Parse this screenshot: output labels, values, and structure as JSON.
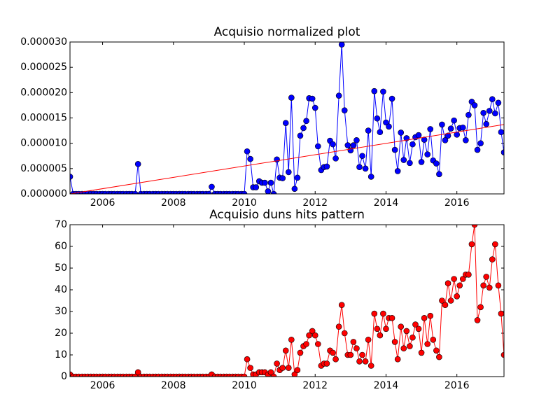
{
  "chart_data": [
    {
      "type": "line",
      "title": "Acquisio normalized plot",
      "xlim": [
        2005.08,
        2017.33
      ],
      "xticks": [
        2006,
        2008,
        2010,
        2012,
        2014,
        2016
      ],
      "ylim": [
        0,
        3e-05
      ],
      "yticks": [
        {
          "value": 0,
          "label": "0.000000"
        },
        {
          "value": 5e-06,
          "label": "0.000005"
        },
        {
          "value": 1e-05,
          "label": "0.000010"
        },
        {
          "value": 1.5e-05,
          "label": "0.000015"
        },
        {
          "value": 2e-05,
          "label": "0.000020"
        },
        {
          "value": 2.5e-05,
          "label": "0.000025"
        },
        {
          "value": 3e-05,
          "label": "0.000030"
        }
      ],
      "series": [
        {
          "color": "#0000ff",
          "markers": true,
          "x": [
            2005.08,
            2005.17,
            2005.25,
            2005.33,
            2005.42,
            2005.5,
            2005.58,
            2005.67,
            2005.75,
            2005.83,
            2005.92,
            2006,
            2006.08,
            2006.17,
            2006.25,
            2006.33,
            2006.42,
            2006.5,
            2006.58,
            2006.67,
            2006.75,
            2006.83,
            2006.92,
            2007,
            2007.08,
            2007.17,
            2007.25,
            2007.33,
            2007.42,
            2007.5,
            2007.58,
            2007.67,
            2007.75,
            2007.83,
            2007.92,
            2008,
            2008.08,
            2008.17,
            2008.25,
            2008.33,
            2008.42,
            2008.5,
            2008.58,
            2008.67,
            2008.75,
            2008.83,
            2008.92,
            2009,
            2009.08,
            2009.17,
            2009.25,
            2009.33,
            2009.42,
            2009.5,
            2009.58,
            2009.67,
            2009.75,
            2009.83,
            2009.92,
            2010,
            2010.08,
            2010.17,
            2010.25,
            2010.33,
            2010.42,
            2010.5,
            2010.58,
            2010.67,
            2010.75,
            2010.83,
            2010.92,
            2011,
            2011.08,
            2011.17,
            2011.25,
            2011.33,
            2011.42,
            2011.5,
            2011.58,
            2011.67,
            2011.75,
            2011.83,
            2011.92,
            2012,
            2012.08,
            2012.17,
            2012.25,
            2012.33,
            2012.42,
            2012.5,
            2012.58,
            2012.67,
            2012.75,
            2012.83,
            2012.92,
            2013,
            2013.08,
            2013.17,
            2013.25,
            2013.33,
            2013.42,
            2013.5,
            2013.58,
            2013.67,
            2013.75,
            2013.83,
            2013.92,
            2014,
            2014.08,
            2014.17,
            2014.25,
            2014.33,
            2014.42,
            2014.5,
            2014.58,
            2014.67,
            2014.75,
            2014.83,
            2014.92,
            2015,
            2015.08,
            2015.17,
            2015.25,
            2015.33,
            2015.42,
            2015.5,
            2015.58,
            2015.67,
            2015.75,
            2015.83,
            2015.92,
            2016,
            2016.08,
            2016.17,
            2016.25,
            2016.33,
            2016.42,
            2016.5,
            2016.58,
            2016.67,
            2016.75,
            2016.83,
            2016.92,
            2017,
            2017.08,
            2017.17,
            2017.25,
            2017.33
          ],
          "values": [
            3.4e-06,
            0,
            0,
            0,
            0,
            0,
            0,
            0,
            0,
            0,
            0,
            0,
            0,
            0,
            0,
            0,
            0,
            0,
            0,
            0,
            0,
            0,
            0,
            5.9e-06,
            0,
            0,
            0,
            0,
            0,
            0,
            0,
            0,
            0,
            0,
            0,
            0,
            0,
            0,
            0,
            0,
            0,
            0,
            0,
            0,
            0,
            0,
            0,
            0,
            1.4e-06,
            0,
            0,
            0,
            0,
            0,
            0,
            0,
            0,
            0,
            0,
            0,
            8.4e-06,
            6.9e-06,
            1.3e-06,
            1.3e-06,
            2.5e-06,
            2.2e-06,
            2.2e-06,
            5e-07,
            2.2e-06,
            0,
            6.8e-06,
            3.2e-06,
            3.1e-06,
            1.4e-05,
            4.3e-06,
            1.9e-05,
            1e-06,
            3.2e-06,
            1.15e-05,
            1.3e-05,
            1.44e-05,
            1.89e-05,
            1.88e-05,
            1.7e-05,
            9.4e-06,
            4.7e-06,
            5.3e-06,
            5.4e-06,
            1.05e-05,
            9.8e-06,
            7e-06,
            1.94e-05,
            2.95e-05,
            1.65e-05,
            9.6e-06,
            8.6e-06,
            9.6e-06,
            1.06e-05,
            5.3e-06,
            7.5e-06,
            5e-06,
            1.25e-05,
            3.4e-06,
            2.03e-05,
            1.49e-05,
            1.22e-05,
            2.02e-05,
            1.41e-05,
            1.33e-05,
            1.88e-05,
            8.7e-06,
            4.5e-06,
            1.21e-05,
            6.7e-06,
            1.1e-05,
            6.1e-06,
            9.8e-06,
            1.12e-05,
            1.16e-05,
            6.3e-06,
            1.07e-05,
            7.8e-06,
            1.28e-05,
            6.6e-06,
            6e-06,
            3.9e-06,
            1.37e-05,
            1.06e-05,
            1.15e-05,
            1.29e-05,
            1.45e-05,
            1.17e-05,
            1.3e-05,
            1.31e-05,
            1.06e-05,
            1.56e-05,
            1.82e-05,
            1.75e-05,
            8.7e-06,
            1e-05,
            1.6e-05,
            1.38e-05,
            1.64e-05,
            1.87e-05,
            1.59e-05,
            1.8e-05,
            1.22e-05,
            8.2e-06
          ]
        },
        {
          "color": "#ff0000",
          "x": [
            2005.08,
            2017.33
          ],
          "values": [
            0,
            1.37e-05
          ]
        }
      ]
    },
    {
      "type": "line",
      "title": "Acquisio duns hits pattern",
      "xlim": [
        2005.08,
        2017.33
      ],
      "xticks": [
        2006,
        2008,
        2010,
        2012,
        2014,
        2016
      ],
      "ylim": [
        0,
        70
      ],
      "yticks": [
        0,
        10,
        20,
        30,
        40,
        50,
        60,
        70
      ],
      "series": [
        {
          "color": "#ff0000",
          "markers": true,
          "x": [
            2005.08,
            2005.17,
            2005.25,
            2005.33,
            2005.42,
            2005.5,
            2005.58,
            2005.67,
            2005.75,
            2005.83,
            2005.92,
            2006,
            2006.08,
            2006.17,
            2006.25,
            2006.33,
            2006.42,
            2006.5,
            2006.58,
            2006.67,
            2006.75,
            2006.83,
            2006.92,
            2007,
            2007.08,
            2007.17,
            2007.25,
            2007.33,
            2007.42,
            2007.5,
            2007.58,
            2007.67,
            2007.75,
            2007.83,
            2007.92,
            2008,
            2008.08,
            2008.17,
            2008.25,
            2008.33,
            2008.42,
            2008.5,
            2008.58,
            2008.67,
            2008.75,
            2008.83,
            2008.92,
            2009,
            2009.08,
            2009.17,
            2009.25,
            2009.33,
            2009.42,
            2009.5,
            2009.58,
            2009.67,
            2009.75,
            2009.83,
            2009.92,
            2010,
            2010.08,
            2010.17,
            2010.25,
            2010.33,
            2010.42,
            2010.5,
            2010.58,
            2010.67,
            2010.75,
            2010.83,
            2010.92,
            2011,
            2011.08,
            2011.17,
            2011.25,
            2011.33,
            2011.42,
            2011.5,
            2011.58,
            2011.67,
            2011.75,
            2011.83,
            2011.92,
            2012,
            2012.08,
            2012.17,
            2012.25,
            2012.33,
            2012.42,
            2012.5,
            2012.58,
            2012.67,
            2012.75,
            2012.83,
            2012.92,
            2013,
            2013.08,
            2013.17,
            2013.25,
            2013.33,
            2013.42,
            2013.5,
            2013.58,
            2013.67,
            2013.75,
            2013.83,
            2013.92,
            2014,
            2014.08,
            2014.17,
            2014.25,
            2014.33,
            2014.42,
            2014.5,
            2014.58,
            2014.67,
            2014.75,
            2014.83,
            2014.92,
            2015,
            2015.08,
            2015.17,
            2015.25,
            2015.33,
            2015.42,
            2015.5,
            2015.58,
            2015.67,
            2015.75,
            2015.83,
            2015.92,
            2016,
            2016.08,
            2016.17,
            2016.25,
            2016.33,
            2016.42,
            2016.5,
            2016.58,
            2016.67,
            2016.75,
            2016.83,
            2016.92,
            2017,
            2017.08,
            2017.17,
            2017.25,
            2017.33
          ],
          "values": [
            1,
            0,
            0,
            0,
            0,
            0,
            0,
            0,
            0,
            0,
            0,
            0,
            0,
            0,
            0,
            0,
            0,
            0,
            0,
            0,
            0,
            0,
            0,
            2,
            0,
            0,
            0,
            0,
            0,
            0,
            0,
            0,
            0,
            0,
            0,
            0,
            0,
            0,
            0,
            0,
            0,
            0,
            0,
            0,
            0,
            0,
            0,
            0,
            1,
            0,
            0,
            0,
            0,
            0,
            0,
            0,
            0,
            0,
            0,
            0,
            8,
            4,
            1,
            1,
            2,
            2,
            2,
            1,
            2,
            0,
            6,
            3,
            4,
            12,
            4,
            17,
            1,
            3,
            11,
            14,
            15,
            19,
            21,
            19,
            15,
            5,
            6,
            6,
            12,
            11,
            8,
            23,
            33,
            20,
            10,
            10,
            16,
            13,
            7,
            10,
            7,
            17,
            5,
            29,
            22,
            19,
            29,
            22,
            27,
            27,
            16,
            8,
            23,
            13,
            21,
            14,
            18,
            24,
            22,
            11,
            27,
            15,
            28,
            17,
            12,
            9,
            35,
            33,
            43,
            35,
            45,
            37,
            42,
            45,
            47,
            47,
            61,
            70,
            26,
            32,
            42,
            46,
            41,
            54,
            61,
            42,
            29,
            10
          ]
        }
      ]
    }
  ]
}
